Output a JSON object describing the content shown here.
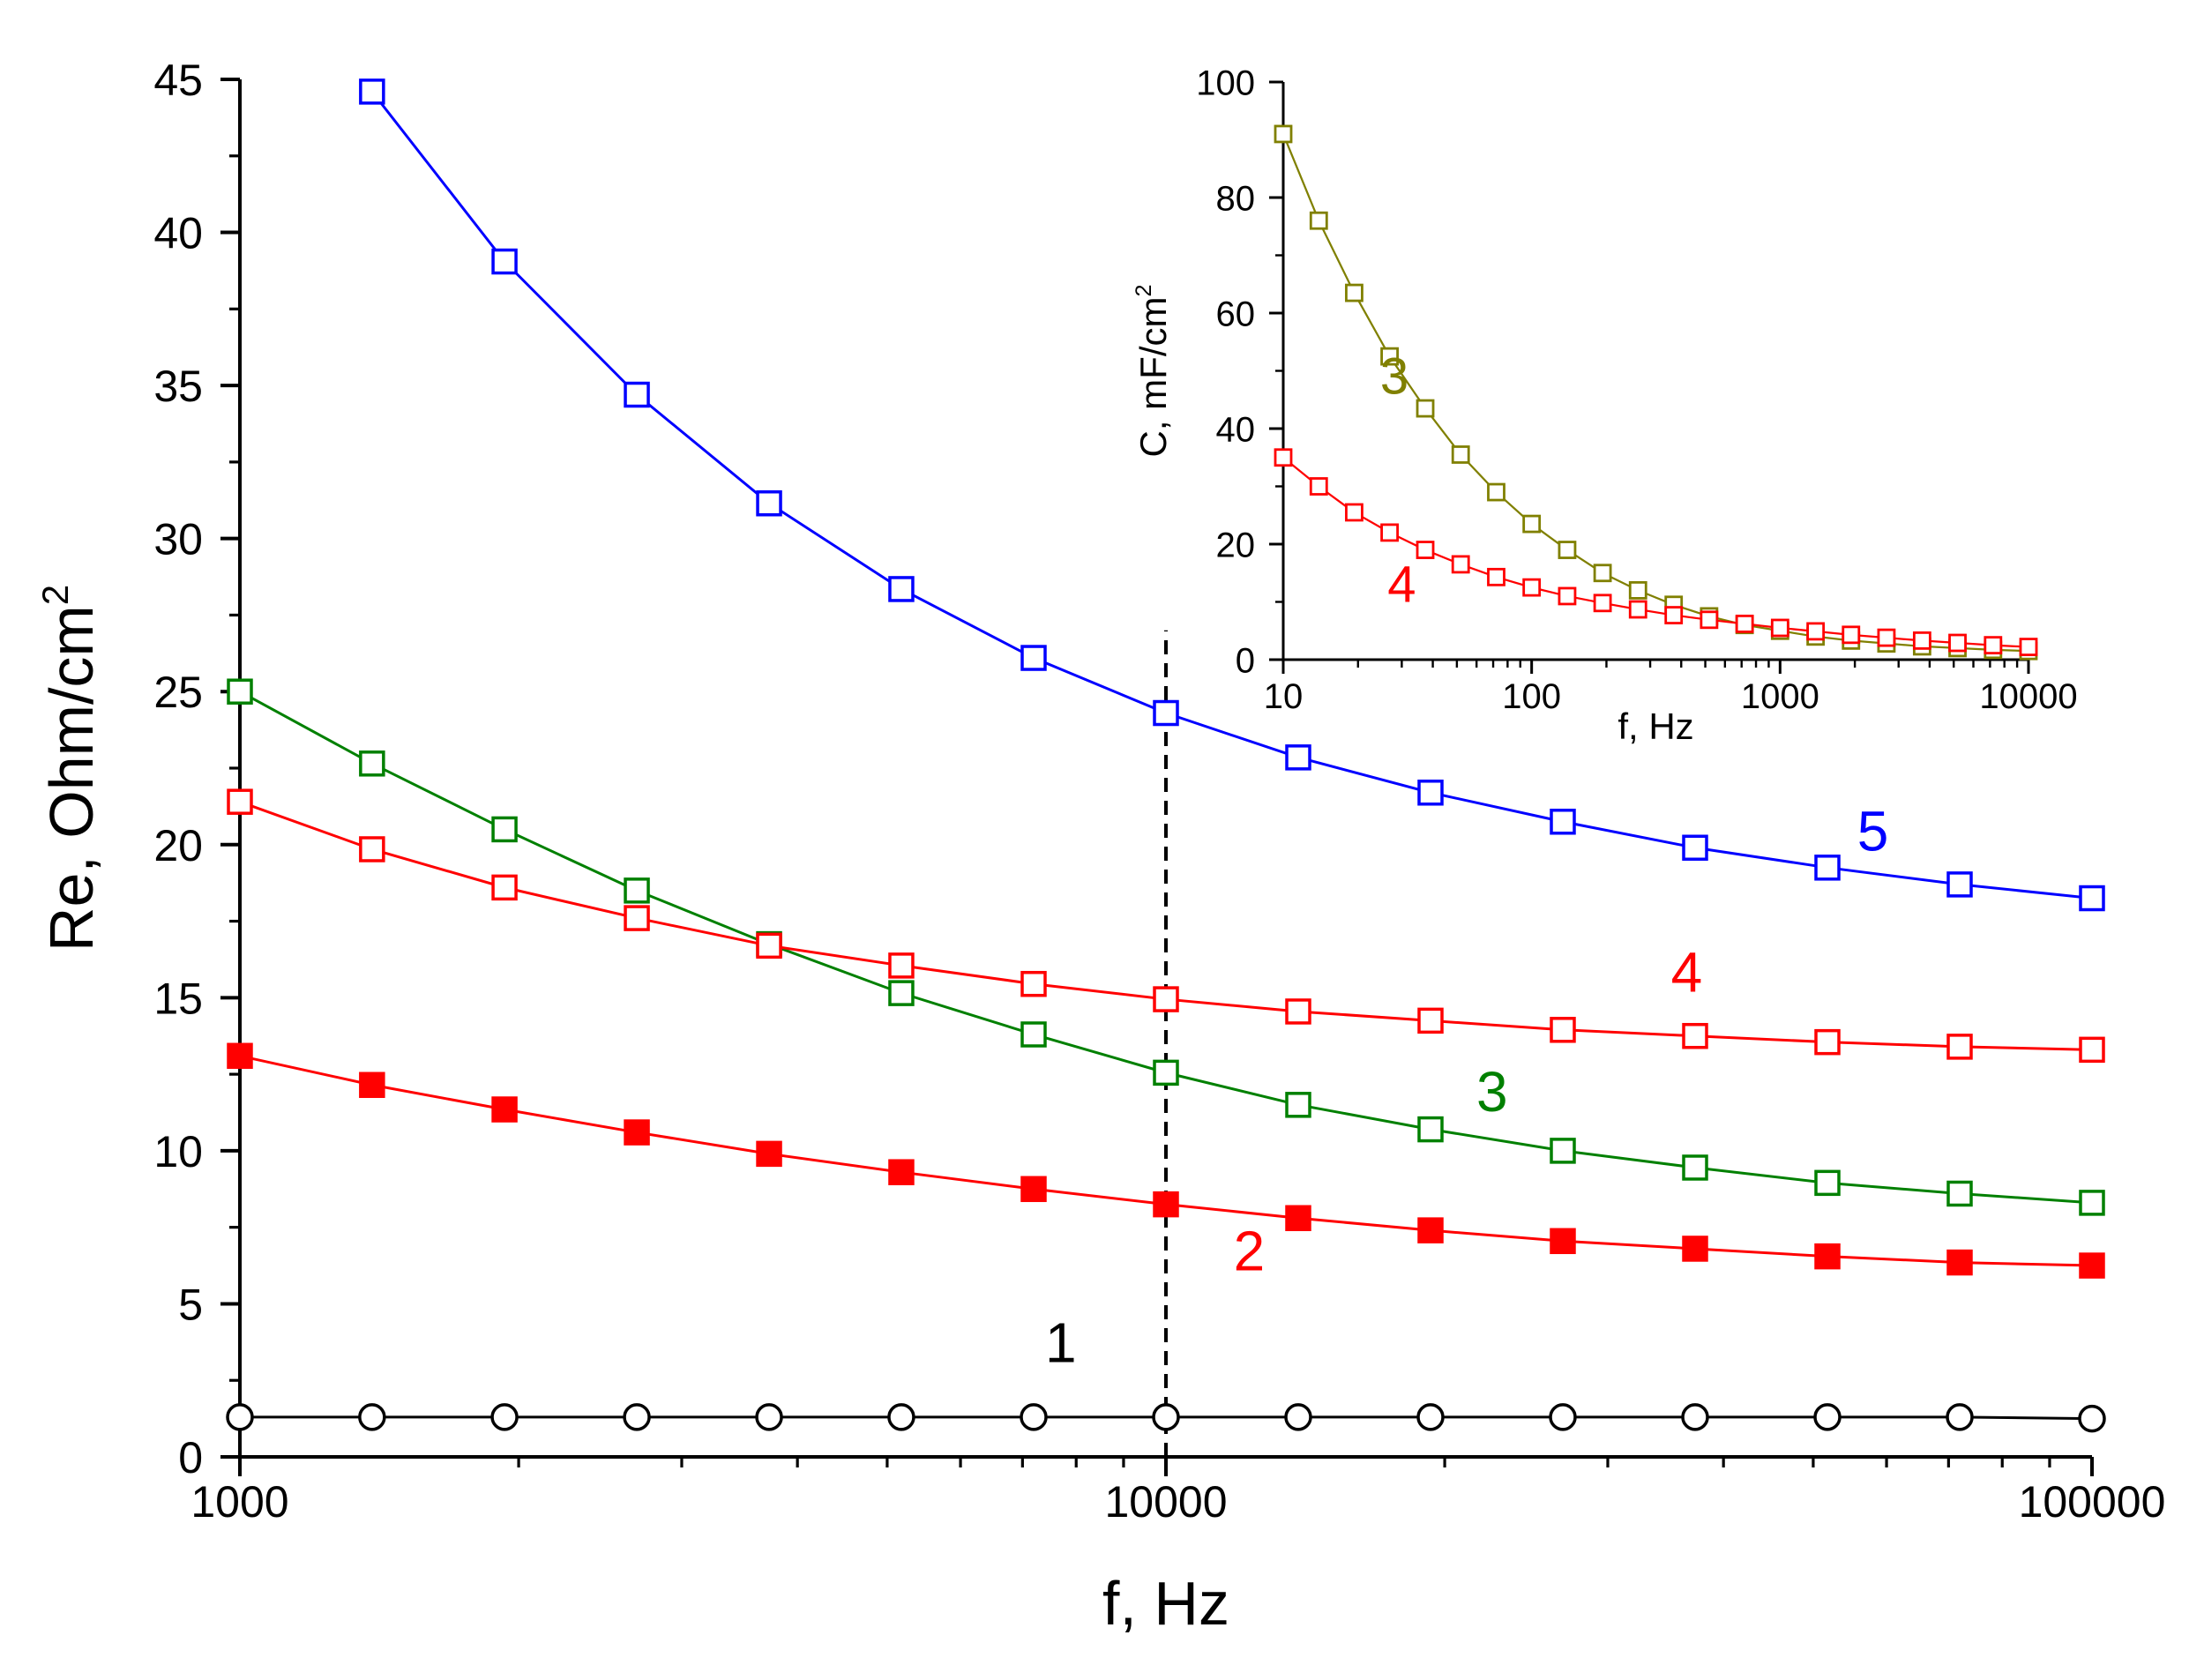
{
  "chart_data": [
    {
      "id": "main",
      "type": "line",
      "x_scale": "log",
      "xlabel": "f, Hz",
      "ylabel_main": "Re, Ohm/cm",
      "ylabel_sup": "2",
      "xlim": [
        1000,
        100000
      ],
      "ylim": [
        0,
        45
      ],
      "x_ticks": [
        1000,
        10000,
        100000
      ],
      "x_tick_labels": [
        "1000",
        "10000",
        "100000"
      ],
      "y_ticks": [
        0,
        5,
        10,
        15,
        20,
        25,
        30,
        35,
        40,
        45
      ],
      "y_tick_labels": [
        "0",
        "5",
        "10",
        "15",
        "20",
        "25",
        "30",
        "35",
        "40",
        "45"
      ],
      "reference_line": {
        "x": 10000,
        "y_top": 27,
        "style": "dashed",
        "color": "#000000"
      },
      "x": [
        1000,
        1389,
        1931,
        2683,
        3728,
        5179,
        7197,
        10000,
        13895,
        19307,
        26827,
        37276,
        51795,
        71969,
        100000
      ],
      "series": [
        {
          "name": "1",
          "label": "1",
          "color": "#000000",
          "marker": "circle-open",
          "label_at": {
            "x": 7700,
            "y": 3.1
          },
          "values": [
            1.3,
            1.3,
            1.3,
            1.3,
            1.3,
            1.3,
            1.3,
            1.3,
            1.3,
            1.3,
            1.3,
            1.3,
            1.3,
            1.3,
            1.25
          ]
        },
        {
          "name": "2",
          "label": "2",
          "color": "#ff0000",
          "marker": "square-filled",
          "label_at": {
            "x": 12300,
            "y": 6.1
          },
          "values": [
            13.1,
            12.15,
            11.35,
            10.6,
            9.9,
            9.3,
            8.75,
            8.25,
            7.8,
            7.4,
            7.05,
            6.8,
            6.55,
            6.35,
            6.25
          ]
        },
        {
          "name": "3",
          "label": "3",
          "color": "#008000",
          "marker": "square-open",
          "label_at": {
            "x": 22500,
            "y": 11.3
          },
          "values": [
            25.0,
            22.65,
            20.5,
            18.5,
            16.75,
            15.15,
            13.8,
            12.55,
            11.5,
            10.7,
            10.0,
            9.45,
            8.95,
            8.6,
            8.3
          ]
        },
        {
          "name": "4",
          "label": "4",
          "color": "#ff0000",
          "marker": "square-open",
          "label_at": {
            "x": 36500,
            "y": 15.2
          },
          "values": [
            21.4,
            19.85,
            18.6,
            17.6,
            16.7,
            16.05,
            15.45,
            14.95,
            14.55,
            14.25,
            13.95,
            13.75,
            13.55,
            13.4,
            13.3
          ]
        },
        {
          "name": "5",
          "label": "5",
          "color": "#0000ff",
          "marker": "square-open",
          "label_at": {
            "x": 58000,
            "y": 19.8
          },
          "values": [
            null,
            44.6,
            39.05,
            34.7,
            31.15,
            28.35,
            26.1,
            24.3,
            22.85,
            21.7,
            20.75,
            19.9,
            19.25,
            18.7,
            18.25
          ]
        }
      ]
    },
    {
      "id": "inset",
      "type": "line",
      "x_scale": "log",
      "xlabel": "f, Hz",
      "ylabel_main": "C, mF/cm",
      "ylabel_sup": "2",
      "xlim": [
        10,
        10000
      ],
      "ylim": [
        0,
        100
      ],
      "x_ticks": [
        10,
        100,
        1000,
        10000
      ],
      "x_tick_labels": [
        "10",
        "100",
        "1000",
        "10000"
      ],
      "y_ticks": [
        0,
        20,
        40,
        60,
        80,
        100
      ],
      "y_tick_labels": [
        "0",
        "20",
        "40",
        "60",
        "80",
        "100"
      ],
      "x": [
        10,
        13.9,
        19.3,
        26.8,
        37.3,
        51.8,
        72.0,
        100,
        139,
        193,
        268,
        373,
        518,
        720,
        1000,
        1390,
        1930,
        2680,
        3730,
        5180,
        7200,
        10000
      ],
      "series": [
        {
          "name": "3",
          "label": "3",
          "color": "#808000",
          "marker": "square-open",
          "label_at": {
            "x": 28,
            "y": 46
          },
          "values": [
            91,
            76,
            63.5,
            52.5,
            43.5,
            35.5,
            29,
            23.5,
            19,
            15,
            12,
            9.5,
            7.5,
            6,
            5,
            4,
            3.3,
            2.8,
            2.3,
            2,
            1.7,
            1.5
          ]
        },
        {
          "name": "4",
          "label": "4",
          "color": "#ff0000",
          "marker": "square-open",
          "label_at": {
            "x": 30,
            "y": 10
          },
          "values": [
            35,
            30,
            25.5,
            22,
            19,
            16.5,
            14.3,
            12.5,
            11,
            9.8,
            8.7,
            7.7,
            6.9,
            6.2,
            5.5,
            4.9,
            4.3,
            3.8,
            3.3,
            2.9,
            2.5,
            2.2
          ]
        }
      ]
    }
  ]
}
